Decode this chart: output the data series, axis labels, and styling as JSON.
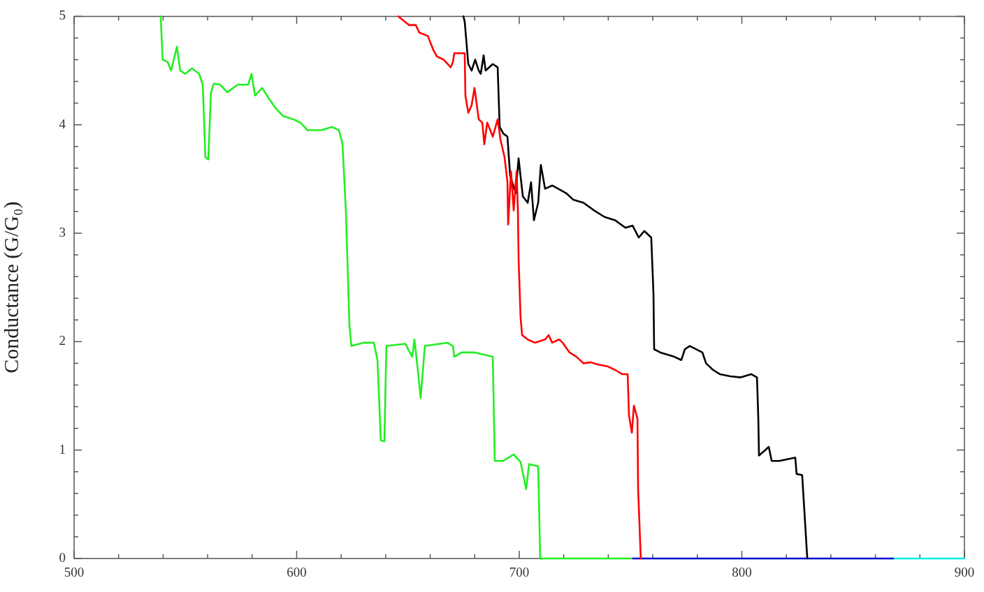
{
  "chart_data": {
    "type": "line",
    "ylabel": "Conductance (G/G₀)",
    "xlim": [
      500,
      900
    ],
    "xticks": [
      500,
      600,
      700,
      800,
      900
    ],
    "ylim": [
      0,
      5
    ],
    "yticks": [
      0,
      1,
      2,
      3,
      4,
      5
    ],
    "grid": false,
    "legend": false,
    "marker": "none",
    "line_style": "solid",
    "series": [
      {
        "color": "#22ee22",
        "x": [
          538.9,
          539.8,
          542,
          543.6,
          546.2,
          547.7,
          549.9,
          553,
          556.2,
          557.8,
          559,
          560.3,
          561.5,
          562.8,
          565.6,
          568.8,
          573.5,
          578.2,
          579.7,
          581.3,
          584.5,
          587.6,
          590.7,
          593.9,
          598.6,
          601.7,
          604.9,
          611.1,
          615.9,
          619,
          620.6,
          622.1,
          623.7,
          624.6,
          630,
          634.7,
          636.3,
          637.8,
          639.4,
          640.3,
          648.8,
          651.9,
          652.9,
          654.1,
          655.7,
          657.6,
          667.7,
          670.2,
          670.8,
          674,
          680.2,
          688.1,
          689,
          692.8,
          697.5,
          700.6,
          703.1,
          704.4,
          708.5,
          709.4,
          750
        ],
        "values": [
          5,
          4.6,
          4.58,
          4.5,
          4.72,
          4.5,
          4.47,
          4.52,
          4.47,
          4.37,
          3.7,
          3.68,
          4.3,
          4.38,
          4.37,
          4.3,
          4.37,
          4.37,
          4.47,
          4.27,
          4.34,
          4.24,
          4.15,
          4.08,
          4.05,
          4.02,
          3.95,
          3.95,
          3.98,
          3.95,
          3.82,
          3.21,
          2.15,
          1.96,
          1.99,
          1.99,
          1.83,
          1.09,
          1.08,
          1.96,
          1.98,
          1.86,
          2.02,
          1.8,
          1.48,
          1.96,
          1.99,
          1.96,
          1.86,
          1.9,
          1.9,
          1.86,
          0.9,
          0.9,
          0.96,
          0.89,
          0.64,
          0.87,
          0.85,
          0,
          0
        ]
      },
      {
        "color": "#ff0000",
        "x": [
          645.7,
          650.4,
          653.5,
          655.1,
          658.9,
          661.4,
          663,
          666.1,
          669.2,
          670.2,
          670.8,
          675.5,
          675.8,
          677.1,
          678.6,
          679.9,
          681.8,
          683.4,
          684.3,
          685.6,
          688.1,
          690.3,
          691.6,
          693.4,
          694.7,
          695,
          696.3,
          697.5,
          698.8,
          699.4,
          699.7,
          700.6,
          701.3,
          703.8,
          707,
          711.6,
          713.2,
          714.8,
          717.9,
          719.5,
          722.6,
          725.7,
          728.9,
          732,
          735.2,
          739.9,
          743,
          746.2,
          748.7,
          749.3,
          750.6,
          751.5,
          753.1,
          753.4,
          754.6
        ],
        "values": [
          5,
          4.92,
          4.92,
          4.85,
          4.82,
          4.69,
          4.63,
          4.6,
          4.53,
          4.58,
          4.66,
          4.66,
          4.27,
          4.11,
          4.18,
          4.34,
          4.05,
          4.02,
          3.82,
          4.02,
          3.89,
          4.05,
          3.86,
          3.7,
          3.47,
          3.08,
          3.57,
          3.21,
          3.57,
          3.21,
          2.76,
          2.22,
          2.06,
          2.02,
          1.99,
          2.02,
          2.06,
          1.99,
          2.02,
          1.99,
          1.9,
          1.86,
          1.8,
          1.81,
          1.79,
          1.77,
          1.74,
          1.7,
          1.7,
          1.32,
          1.16,
          1.41,
          1.29,
          0.64,
          0
        ]
      },
      {
        "color": "#000000",
        "x": [
          674.9,
          675.5,
          677.1,
          678.6,
          680.2,
          681.8,
          682.7,
          684,
          684.9,
          688.1,
          690.3,
          691.2,
          692.8,
          694.7,
          695.9,
          698.4,
          699.7,
          701.6,
          703.8,
          705.3,
          706.6,
          708.5,
          709.7,
          711.6,
          714.8,
          721,
          724.2,
          728.9,
          733.6,
          738.3,
          743,
          747.7,
          750.9,
          753.7,
          756.2,
          759.3,
          760.3,
          760.6,
          763.4,
          769.7,
          772.8,
          774.4,
          776.6,
          782.3,
          783.9,
          787,
          790.1,
          794.8,
          799.5,
          804.2,
          806.8,
          807.4,
          807.7,
          810.5,
          812.1,
          813.4,
          816.8,
          824,
          824.6,
          827.1,
          829.4
        ],
        "values": [
          5,
          4.95,
          4.56,
          4.5,
          4.6,
          4.5,
          4.47,
          4.64,
          4.5,
          4.56,
          4.53,
          3.98,
          3.92,
          3.89,
          3.53,
          3.37,
          3.69,
          3.34,
          3.28,
          3.47,
          3.12,
          3.28,
          3.63,
          3.41,
          3.44,
          3.37,
          3.31,
          3.28,
          3.21,
          3.15,
          3.12,
          3.05,
          3.07,
          2.96,
          3.02,
          2.96,
          2.44,
          1.93,
          1.9,
          1.86,
          1.83,
          1.93,
          1.96,
          1.9,
          1.8,
          1.74,
          1.7,
          1.68,
          1.67,
          1.7,
          1.67,
          1.29,
          0.95,
          1,
          1.03,
          0.9,
          0.9,
          0.93,
          0.78,
          0.77,
          0
        ]
      },
      {
        "color": "#0000cc",
        "x": [
          751,
          868
        ],
        "values": [
          0,
          0
        ]
      },
      {
        "color": "#00eeee",
        "x": [
          868,
          900
        ],
        "values": [
          0,
          0
        ]
      }
    ]
  }
}
